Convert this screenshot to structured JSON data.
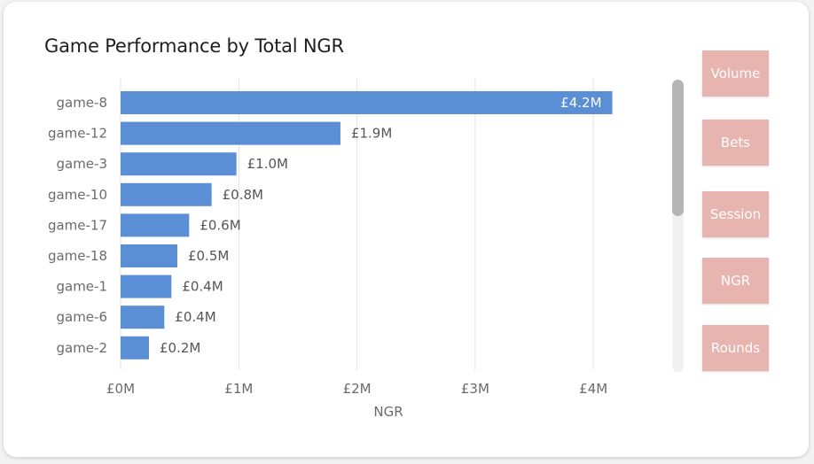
{
  "title": "Game Performance by Total NGR",
  "buttons": [
    {
      "label": "Volume"
    },
    {
      "label": "Bets"
    },
    {
      "label": "Session"
    },
    {
      "label": "NGR"
    },
    {
      "label": "Rounds"
    }
  ],
  "colors": {
    "bar": "#5a8fd6",
    "button": "#e7b4b0",
    "grid": "#e3e3e3"
  },
  "chart_data": {
    "type": "bar",
    "orientation": "horizontal",
    "title": "Game Performance by Total NGR",
    "xlabel": "NGR",
    "ylabel": "",
    "xlim": [
      0,
      4.5
    ],
    "x_ticks": [
      0,
      1,
      2,
      3,
      4
    ],
    "x_tick_labels": [
      "£0M",
      "£1M",
      "£2M",
      "£3M",
      "£4M"
    ],
    "grid": true,
    "categories": [
      "game-8",
      "game-12",
      "game-3",
      "game-10",
      "game-17",
      "game-18",
      "game-1",
      "game-6",
      "game-2"
    ],
    "values": [
      4.16,
      1.86,
      0.98,
      0.77,
      0.58,
      0.48,
      0.43,
      0.37,
      0.24
    ],
    "data_labels": [
      "£4.2M",
      "£1.9M",
      "£1.0M",
      "£0.8M",
      "£0.6M",
      "£0.5M",
      "£0.4M",
      "£0.4M",
      "£0.2M"
    ]
  }
}
